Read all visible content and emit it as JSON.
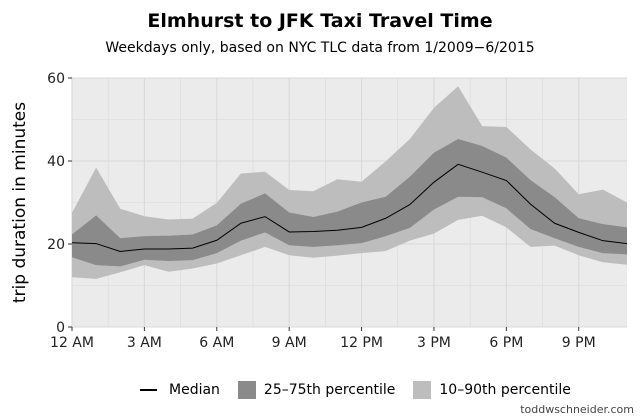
{
  "title": "Elmhurst to JFK Taxi Travel Time",
  "subtitle": "Weekdays only, based on NYC TLC data from 1/2009−6/2015",
  "credit": "toddwschneider.com",
  "legend": {
    "median": "Median",
    "iqr": "25–75th percentile",
    "p10_90": "10–90th percentile"
  },
  "colors": {
    "panel": "#ebebeb",
    "grid": "#d9d9d9",
    "band_outer": "#bdbdbd",
    "band_inner": "#8a8a8a",
    "median": "#000000"
  },
  "chart_data": {
    "type": "area",
    "title": "Elmhurst to JFK Taxi Travel Time",
    "subtitle": "Weekdays only, based on NYC TLC data from 1/2009−6/2015",
    "xlabel": "",
    "ylabel": "trip duration in minutes",
    "xlim": [
      0,
      23
    ],
    "ylim": [
      0,
      60
    ],
    "x_ticks": [
      {
        "value": 0,
        "label": "12 AM"
      },
      {
        "value": 3,
        "label": "3 AM"
      },
      {
        "value": 6,
        "label": "6 AM"
      },
      {
        "value": 9,
        "label": "9 AM"
      },
      {
        "value": 12,
        "label": "12 PM"
      },
      {
        "value": 15,
        "label": "3 PM"
      },
      {
        "value": 18,
        "label": "6 PM"
      },
      {
        "value": 21,
        "label": "9 PM"
      }
    ],
    "y_ticks": [
      0,
      20,
      40,
      60
    ],
    "grid": true,
    "legend_position": "bottom",
    "x": [
      0,
      1,
      2,
      3,
      4,
      5,
      6,
      7,
      8,
      9,
      10,
      11,
      12,
      13,
      14,
      15,
      16,
      17,
      18,
      19,
      20,
      21,
      22,
      23
    ],
    "series": [
      {
        "name": "Median",
        "values": [
          20.3,
          20.1,
          18.2,
          18.8,
          18.8,
          19.0,
          20.9,
          25.0,
          26.6,
          22.9,
          23.0,
          23.3,
          24.0,
          26.2,
          29.5,
          34.9,
          39.2,
          37.3,
          35.3,
          29.6,
          25.0,
          22.8,
          20.8,
          20.1
        ]
      },
      {
        "name": "25th percentile",
        "values": [
          16.8,
          14.9,
          14.6,
          16.2,
          15.9,
          16.1,
          17.8,
          20.8,
          22.8,
          19.7,
          19.3,
          19.7,
          20.2,
          21.9,
          23.9,
          28.3,
          31.4,
          31.3,
          28.6,
          23.6,
          21.4,
          19.3,
          17.8,
          17.5
        ]
      },
      {
        "name": "75th percentile",
        "values": [
          22.3,
          26.9,
          21.4,
          21.9,
          22.0,
          22.3,
          24.5,
          29.7,
          32.2,
          27.6,
          26.5,
          27.8,
          30.0,
          31.4,
          36.2,
          42.0,
          45.3,
          43.6,
          40.8,
          35.4,
          31.3,
          26.2,
          24.8,
          24.0
        ]
      },
      {
        "name": "10th percentile",
        "values": [
          12.0,
          11.6,
          13.2,
          14.9,
          13.3,
          14.1,
          15.3,
          17.3,
          19.3,
          17.3,
          16.7,
          17.2,
          17.8,
          18.3,
          20.8,
          22.5,
          25.8,
          26.8,
          24.0,
          19.3,
          19.6,
          17.3,
          15.6,
          15.0
        ]
      },
      {
        "name": "90th percentile",
        "values": [
          27.5,
          38.4,
          28.5,
          26.7,
          25.9,
          26.1,
          29.9,
          37.0,
          37.4,
          33.0,
          32.7,
          35.6,
          35.0,
          39.9,
          45.3,
          52.8,
          58.0,
          48.4,
          48.2,
          42.8,
          38.2,
          32.0,
          33.1,
          30.0
        ]
      }
    ]
  }
}
